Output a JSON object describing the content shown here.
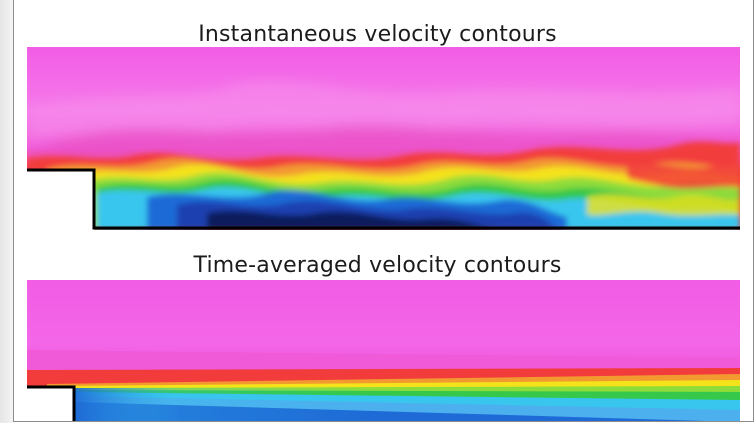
{
  "figure": {
    "panels": [
      {
        "title": "Instantaneous velocity contours"
      },
      {
        "title": "Time-averaged velocity contours"
      }
    ],
    "colors": {
      "free_stream": "#f25ce6",
      "shear_red": "#f23c3c",
      "shear_yellow": "#f4e21a",
      "shear_green": "#35c84a",
      "recirc_cyan": "#38c6ee",
      "recirc_blue": "#1b3fb0",
      "recirc_dark": "#0a1a5c",
      "step_fill": "#ffffff",
      "wall": "#000000"
    }
  }
}
